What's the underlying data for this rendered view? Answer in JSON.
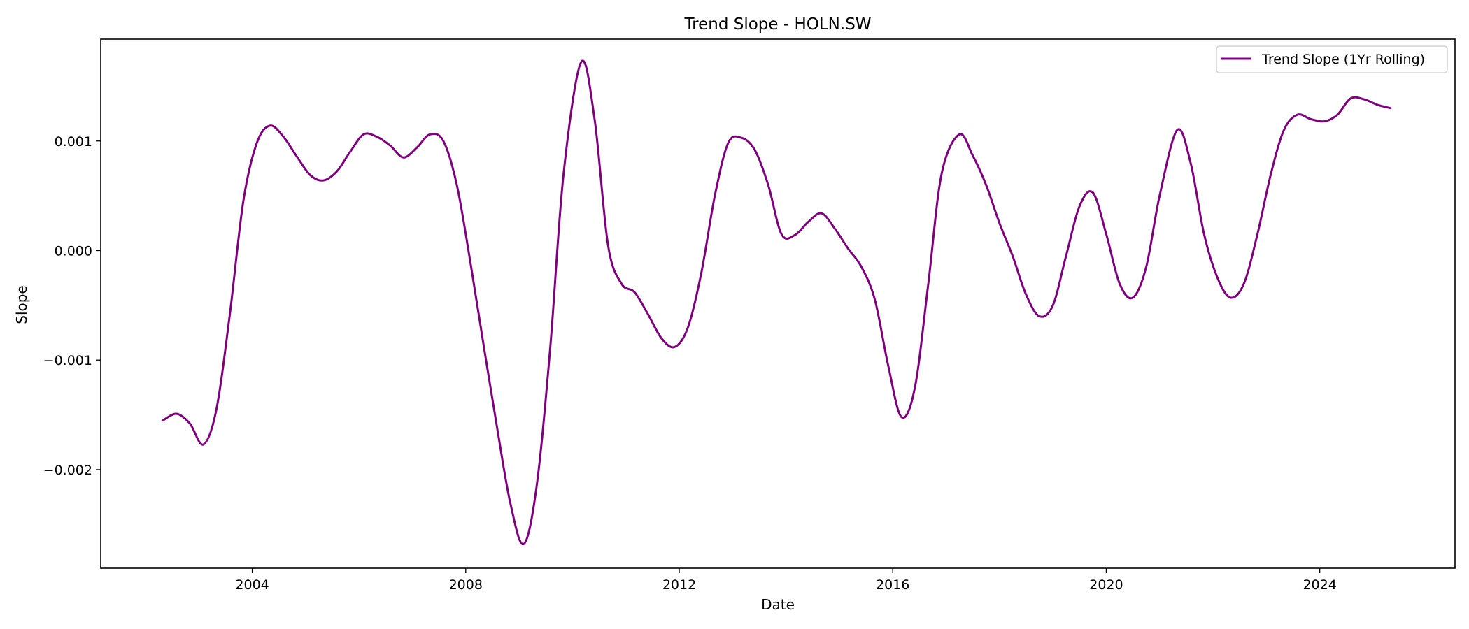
{
  "chart_data": {
    "type": "line",
    "title": "Trend Slope - HOLN.SW",
    "xlabel": "Date",
    "ylabel": "Slope",
    "xlim": [
      "2001-03-01",
      "2026-07-15"
    ],
    "ylim": [
      -0.0029,
      0.00193
    ],
    "x_ticks": [
      {
        "value": "2004-01-01",
        "label": "2004"
      },
      {
        "value": "2008-01-01",
        "label": "2008"
      },
      {
        "value": "2012-01-01",
        "label": "2012"
      },
      {
        "value": "2016-01-01",
        "label": "2016"
      },
      {
        "value": "2020-01-01",
        "label": "2020"
      },
      {
        "value": "2024-01-01",
        "label": "2024"
      }
    ],
    "y_ticks": [
      {
        "value": 0.001,
        "label": "0.001"
      },
      {
        "value": 0.0,
        "label": "0.000"
      },
      {
        "value": -0.001,
        "label": "−0.001"
      },
      {
        "value": -0.002,
        "label": "−0.002"
      }
    ],
    "grid": false,
    "legend": {
      "position": "top-right",
      "entries": [
        "Trend Slope (1Yr Rolling)"
      ]
    },
    "colors": {
      "series": "#800080",
      "axes": "#000000",
      "background": "#ffffff"
    },
    "series": [
      {
        "name": "Trend Slope (1Yr Rolling)",
        "color": "#800080",
        "points": [
          [
            "2002-05-01",
            -0.00155
          ],
          [
            "2002-08-01",
            -0.00149
          ],
          [
            "2002-11-01",
            -0.00158
          ],
          [
            "2003-02-01",
            -0.00177
          ],
          [
            "2003-05-01",
            -0.00145
          ],
          [
            "2003-08-01",
            -0.00058
          ],
          [
            "2003-11-01",
            0.00045
          ],
          [
            "2004-02-01",
            0.00098
          ],
          [
            "2004-05-01",
            0.00114
          ],
          [
            "2004-08-01",
            0.00104
          ],
          [
            "2004-11-01",
            0.00086
          ],
          [
            "2005-02-01",
            0.00069
          ],
          [
            "2005-05-01",
            0.00064
          ],
          [
            "2005-08-01",
            0.00072
          ],
          [
            "2005-11-01",
            0.0009
          ],
          [
            "2006-02-01",
            0.00106
          ],
          [
            "2006-05-01",
            0.00104
          ],
          [
            "2006-08-01",
            0.00096
          ],
          [
            "2006-11-01",
            0.00085
          ],
          [
            "2007-02-01",
            0.00094
          ],
          [
            "2007-05-01",
            0.00106
          ],
          [
            "2007-08-01",
            0.001
          ],
          [
            "2007-11-01",
            0.0006
          ],
          [
            "2008-02-01",
            -0.0001
          ],
          [
            "2008-05-01",
            -0.00085
          ],
          [
            "2008-08-01",
            -0.0016
          ],
          [
            "2008-11-01",
            -0.0023
          ],
          [
            "2009-02-01",
            -0.00268
          ],
          [
            "2009-05-01",
            -0.00215
          ],
          [
            "2009-08-01",
            -0.0009
          ],
          [
            "2009-11-01",
            0.0007
          ],
          [
            "2010-03-01",
            0.00172
          ],
          [
            "2010-06-01",
            0.0012
          ],
          [
            "2010-09-01",
            5e-05
          ],
          [
            "2010-12-01",
            -0.0003
          ],
          [
            "2011-03-01",
            -0.00038
          ],
          [
            "2011-06-01",
            -0.00058
          ],
          [
            "2011-09-01",
            -0.0008
          ],
          [
            "2011-12-01",
            -0.00088
          ],
          [
            "2012-03-01",
            -0.0007
          ],
          [
            "2012-06-01",
            -0.0002
          ],
          [
            "2012-09-01",
            0.0005
          ],
          [
            "2012-12-01",
            0.00098
          ],
          [
            "2013-03-01",
            0.00103
          ],
          [
            "2013-06-01",
            0.00092
          ],
          [
            "2013-09-01",
            0.0006
          ],
          [
            "2013-12-01",
            0.00015
          ],
          [
            "2014-03-01",
            0.00014
          ],
          [
            "2014-06-01",
            0.00026
          ],
          [
            "2014-09-01",
            0.00034
          ],
          [
            "2014-12-01",
            0.0002
          ],
          [
            "2015-03-01",
            2e-05
          ],
          [
            "2015-06-01",
            -0.00015
          ],
          [
            "2015-09-01",
            -0.00045
          ],
          [
            "2015-12-01",
            -0.00105
          ],
          [
            "2016-03-01",
            -0.00152
          ],
          [
            "2016-06-01",
            -0.00125
          ],
          [
            "2016-09-01",
            -0.0003
          ],
          [
            "2016-12-01",
            0.0007
          ],
          [
            "2017-04-01",
            0.00106
          ],
          [
            "2017-07-01",
            0.00087
          ],
          [
            "2017-10-01",
            0.0006
          ],
          [
            "2018-01-01",
            0.00025
          ],
          [
            "2018-04-01",
            -5e-05
          ],
          [
            "2018-07-01",
            -0.0004
          ],
          [
            "2018-10-01",
            -0.0006
          ],
          [
            "2019-01-01",
            -0.0005
          ],
          [
            "2019-04-01",
            -5e-05
          ],
          [
            "2019-07-01",
            0.0004
          ],
          [
            "2019-10-01",
            0.00053
          ],
          [
            "2020-01-01",
            0.00015
          ],
          [
            "2020-04-01",
            -0.0003
          ],
          [
            "2020-07-01",
            -0.00043
          ],
          [
            "2020-10-01",
            -0.00015
          ],
          [
            "2021-01-01",
            0.0005
          ],
          [
            "2021-05-01",
            0.0011
          ],
          [
            "2021-08-01",
            0.0008
          ],
          [
            "2021-11-01",
            0.00015
          ],
          [
            "2022-02-01",
            -0.00025
          ],
          [
            "2022-05-01",
            -0.00043
          ],
          [
            "2022-08-01",
            -0.0003
          ],
          [
            "2022-11-01",
            0.00015
          ],
          [
            "2023-02-01",
            0.0007
          ],
          [
            "2023-05-01",
            0.0011
          ],
          [
            "2023-08-01",
            0.00124
          ],
          [
            "2023-11-01",
            0.0012
          ],
          [
            "2024-02-01",
            0.00118
          ],
          [
            "2024-05-01",
            0.00124
          ],
          [
            "2024-08-01",
            0.00139
          ],
          [
            "2024-11-01",
            0.00138
          ],
          [
            "2025-02-01",
            0.00133
          ],
          [
            "2025-05-01",
            0.0013
          ]
        ]
      }
    ]
  }
}
